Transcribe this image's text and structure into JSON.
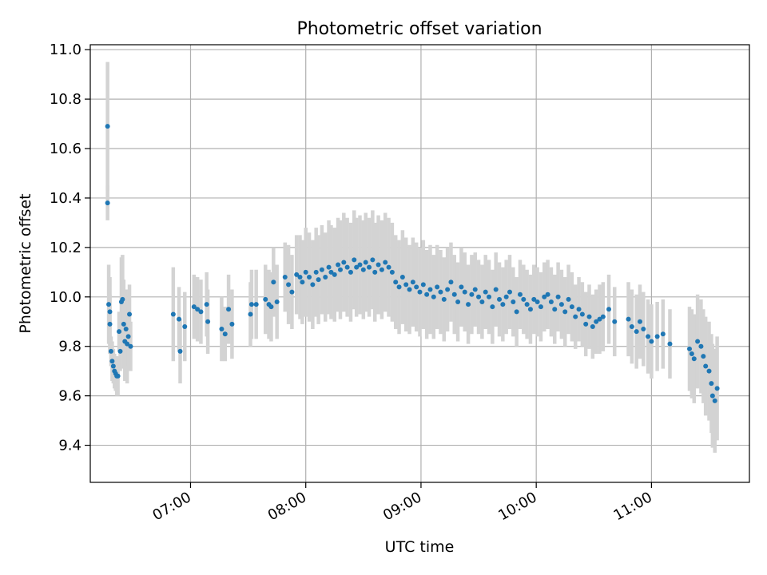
{
  "chart_data": {
    "type": "scatter",
    "title": "Photometric offset variation",
    "xlabel": "UTC time",
    "ylabel": "Photometric offset",
    "x_units": "hours (UTC, decimal)",
    "xlim": [
      6.13,
      11.85
    ],
    "ylim": [
      9.25,
      11.02
    ],
    "x_ticks": [
      7,
      8,
      9,
      10,
      11
    ],
    "x_tick_labels": [
      "07:00",
      "08:00",
      "09:00",
      "10:00",
      "11:00"
    ],
    "y_ticks": [
      9.4,
      9.6,
      9.8,
      10.0,
      10.2,
      10.4,
      10.6,
      10.8,
      11.0
    ],
    "y_tick_labels": [
      "9.4",
      "9.6",
      "9.8",
      "10.0",
      "10.2",
      "10.4",
      "10.6",
      "10.8",
      "11.0"
    ],
    "grid": true,
    "legend": "none",
    "colors": {
      "points": "#1f77b4",
      "errorbars": "#d3d3d3",
      "grid": "#b0b0b0"
    },
    "series": [
      {
        "x": [
          6.28,
          6.28,
          6.29,
          6.3,
          6.3,
          6.31,
          6.32,
          6.33,
          6.34,
          6.35,
          6.36,
          6.37,
          6.38,
          6.39,
          6.4,
          6.41,
          6.42,
          6.43,
          6.44,
          6.45,
          6.46,
          6.47,
          6.48,
          6.85,
          6.9,
          6.91,
          6.95,
          7.03,
          7.06,
          7.09,
          7.14,
          7.15,
          7.27,
          7.3,
          7.33,
          7.36,
          7.52,
          7.53,
          7.57,
          7.65,
          7.68,
          7.7,
          7.72,
          7.75,
          7.82,
          7.85,
          7.88,
          7.92,
          7.95,
          7.97,
          8.0,
          8.03,
          8.06,
          8.09,
          8.11,
          8.14,
          8.17,
          8.2,
          8.22,
          8.25,
          8.28,
          8.3,
          8.33,
          8.36,
          8.39,
          8.42,
          8.44,
          8.47,
          8.5,
          8.52,
          8.55,
          8.58,
          8.6,
          8.63,
          8.66,
          8.69,
          8.72,
          8.75,
          8.78,
          8.81,
          8.84,
          8.87,
          8.9,
          8.93,
          8.96,
          8.99,
          9.02,
          9.05,
          9.08,
          9.11,
          9.14,
          9.17,
          9.2,
          9.23,
          9.26,
          9.29,
          9.32,
          9.35,
          9.38,
          9.41,
          9.44,
          9.47,
          9.5,
          9.53,
          9.56,
          9.59,
          9.62,
          9.65,
          9.68,
          9.71,
          9.74,
          9.77,
          9.8,
          9.83,
          9.86,
          9.89,
          9.92,
          9.95,
          9.98,
          10.01,
          10.04,
          10.07,
          10.1,
          10.13,
          10.16,
          10.19,
          10.22,
          10.25,
          10.28,
          10.31,
          10.34,
          10.37,
          10.4,
          10.43,
          10.46,
          10.49,
          10.52,
          10.55,
          10.58,
          10.63,
          10.68,
          10.8,
          10.83,
          10.87,
          10.9,
          10.93,
          10.97,
          11.0,
          11.05,
          11.1,
          11.16,
          11.33,
          11.35,
          11.37,
          11.4,
          11.43,
          11.45,
          11.47,
          11.5,
          11.52,
          11.53,
          11.55,
          11.57
        ],
        "y": [
          10.69,
          10.38,
          9.97,
          9.94,
          9.89,
          9.78,
          9.74,
          9.72,
          9.7,
          9.69,
          9.68,
          9.68,
          9.86,
          9.78,
          9.98,
          9.99,
          9.89,
          9.82,
          9.87,
          9.81,
          9.84,
          9.93,
          9.8,
          9.93,
          9.91,
          9.78,
          9.88,
          9.96,
          9.95,
          9.94,
          9.97,
          9.9,
          9.87,
          9.85,
          9.95,
          9.89,
          9.93,
          9.97,
          9.97,
          9.99,
          9.97,
          9.96,
          10.06,
          9.98,
          10.08,
          10.05,
          10.02,
          10.09,
          10.08,
          10.06,
          10.1,
          10.08,
          10.05,
          10.1,
          10.07,
          10.11,
          10.08,
          10.12,
          10.1,
          10.09,
          10.13,
          10.11,
          10.14,
          10.12,
          10.1,
          10.15,
          10.12,
          10.13,
          10.11,
          10.14,
          10.12,
          10.15,
          10.1,
          10.13,
          10.11,
          10.14,
          10.12,
          10.1,
          10.06,
          10.04,
          10.08,
          10.05,
          10.03,
          10.06,
          10.04,
          10.02,
          10.05,
          10.01,
          10.03,
          10.0,
          10.04,
          10.02,
          9.99,
          10.03,
          10.06,
          10.01,
          9.98,
          10.04,
          10.02,
          9.97,
          10.01,
          10.03,
          10.0,
          9.98,
          10.02,
          10.0,
          9.96,
          10.03,
          9.99,
          9.97,
          10.0,
          10.02,
          9.98,
          9.94,
          10.01,
          9.99,
          9.97,
          9.95,
          9.99,
          9.98,
          9.96,
          10.0,
          10.01,
          9.98,
          9.95,
          10.0,
          9.97,
          9.94,
          9.99,
          9.96,
          9.92,
          9.95,
          9.93,
          9.89,
          9.92,
          9.88,
          9.9,
          9.91,
          9.92,
          9.95,
          9.9,
          9.91,
          9.88,
          9.86,
          9.9,
          9.87,
          9.84,
          9.82,
          9.84,
          9.85,
          9.81,
          9.79,
          9.77,
          9.75,
          9.82,
          9.8,
          9.76,
          9.72,
          9.7,
          9.65,
          9.6,
          9.58,
          9.63
        ],
        "yerr": [
          0.26,
          0.07,
          0.16,
          0.14,
          0.12,
          0.06,
          0.08,
          0.07,
          0.07,
          0.07,
          0.08,
          0.08,
          0.08,
          0.08,
          0.18,
          0.18,
          0.18,
          0.16,
          0.16,
          0.16,
          0.12,
          0.12,
          0.1,
          0.19,
          0.13,
          0.13,
          0.14,
          0.13,
          0.13,
          0.13,
          0.13,
          0.13,
          0.13,
          0.11,
          0.14,
          0.14,
          0.13,
          0.14,
          0.14,
          0.14,
          0.14,
          0.14,
          0.14,
          0.15,
          0.14,
          0.16,
          0.15,
          0.16,
          0.17,
          0.17,
          0.18,
          0.18,
          0.18,
          0.18,
          0.18,
          0.18,
          0.18,
          0.19,
          0.19,
          0.19,
          0.19,
          0.2,
          0.2,
          0.2,
          0.2,
          0.2,
          0.2,
          0.2,
          0.2,
          0.2,
          0.2,
          0.2,
          0.2,
          0.2,
          0.2,
          0.2,
          0.2,
          0.2,
          0.19,
          0.19,
          0.19,
          0.19,
          0.18,
          0.18,
          0.18,
          0.18,
          0.18,
          0.18,
          0.18,
          0.17,
          0.17,
          0.17,
          0.17,
          0.17,
          0.16,
          0.16,
          0.16,
          0.16,
          0.16,
          0.16,
          0.16,
          0.15,
          0.15,
          0.15,
          0.15,
          0.15,
          0.15,
          0.15,
          0.15,
          0.15,
          0.15,
          0.15,
          0.14,
          0.14,
          0.14,
          0.14,
          0.14,
          0.14,
          0.14,
          0.14,
          0.14,
          0.14,
          0.14,
          0.14,
          0.14,
          0.14,
          0.14,
          0.14,
          0.14,
          0.14,
          0.13,
          0.13,
          0.13,
          0.13,
          0.13,
          0.13,
          0.13,
          0.14,
          0.14,
          0.14,
          0.14,
          0.15,
          0.15,
          0.15,
          0.15,
          0.15,
          0.15,
          0.15,
          0.14,
          0.14,
          0.14,
          0.17,
          0.18,
          0.18,
          0.19,
          0.19,
          0.19,
          0.2,
          0.2,
          0.2,
          0.21,
          0.21,
          0.21
        ]
      }
    ]
  }
}
